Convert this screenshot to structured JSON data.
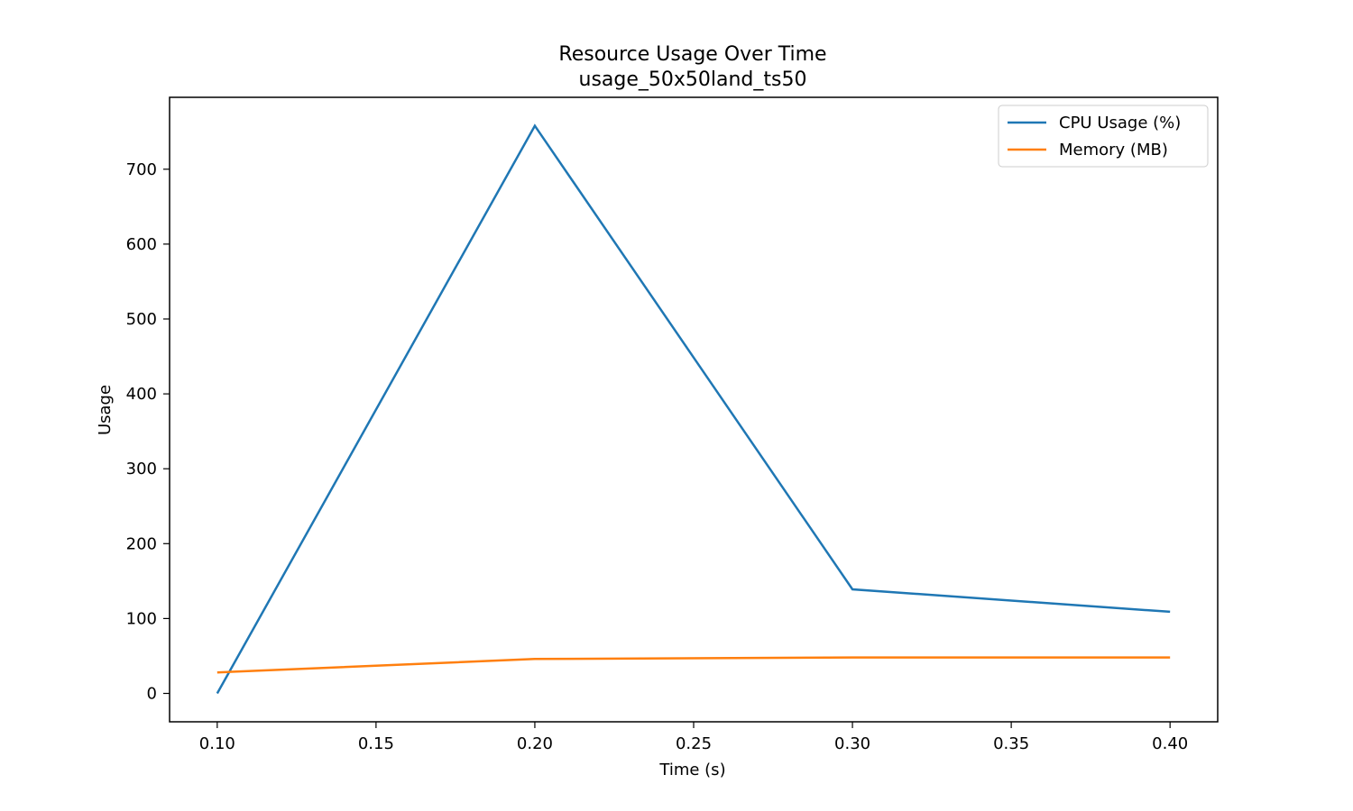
{
  "chart_data": {
    "type": "line",
    "title": "Resource Usage Over Time",
    "subtitle": "usage_50x50land_ts50",
    "xlabel": "Time (s)",
    "ylabel": "Usage",
    "x": [
      0.1,
      0.2,
      0.3,
      0.4
    ],
    "xlim": [
      0.085,
      0.415
    ],
    "ylim": [
      -37.9,
      796
    ],
    "xticks": [
      0.1,
      0.15,
      0.2,
      0.25,
      0.3,
      0.35,
      0.4
    ],
    "xtick_labels": [
      "0.10",
      "0.15",
      "0.20",
      "0.25",
      "0.30",
      "0.35",
      "0.40"
    ],
    "yticks": [
      0,
      100,
      200,
      300,
      400,
      500,
      600,
      700
    ],
    "ytick_labels": [
      "0",
      "100",
      "200",
      "300",
      "400",
      "500",
      "600",
      "700"
    ],
    "grid": false,
    "legend_position": "top-right",
    "series": [
      {
        "name": "CPU Usage (%)",
        "color": "#1f77b4",
        "values": [
          0,
          758,
          139,
          109
        ]
      },
      {
        "name": "Memory (MB)",
        "color": "#ff7f0e",
        "values": [
          28,
          46,
          48,
          48
        ]
      }
    ]
  }
}
